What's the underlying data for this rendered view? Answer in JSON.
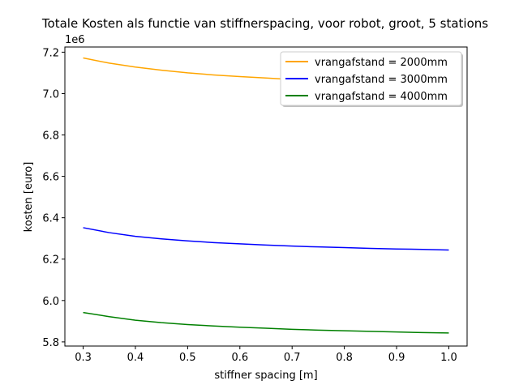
{
  "chart_data": {
    "type": "line",
    "title": "Totale Kosten als functie van stiffnerspacing, voor robot, groot, 5 stations",
    "xlabel": "stiffner spacing [m]",
    "ylabel": "kosten [euro]",
    "y_offset_label": "1e6",
    "xlim": [
      0.265,
      1.035
    ],
    "ylim": [
      5.78,
      7.225
    ],
    "y_scale_factor": 1000000,
    "x_ticks": [
      0.3,
      0.4,
      0.5,
      0.6,
      0.7,
      0.8,
      0.9,
      1.0
    ],
    "x_tick_labels": [
      "0.3",
      "0.4",
      "0.5",
      "0.6",
      "0.7",
      "0.8",
      "0.9",
      "1.0"
    ],
    "y_ticks": [
      5.8,
      6.0,
      6.2,
      6.4,
      6.6,
      6.8,
      7.0,
      7.2
    ],
    "y_tick_labels": [
      "5.8",
      "6.0",
      "6.2",
      "6.4",
      "6.6",
      "6.8",
      "7.0",
      "7.2"
    ],
    "grid": false,
    "legend_position": "top-right",
    "x": [
      0.3,
      0.35,
      0.4,
      0.45,
      0.5,
      0.55,
      0.6,
      0.65,
      0.7,
      0.75,
      0.8,
      0.85,
      0.9,
      0.95,
      1.0
    ],
    "series": [
      {
        "name": "vrangafstand = 2000mm",
        "color": "#ffa500",
        "values": [
          7.172,
          7.147,
          7.128,
          7.113,
          7.1,
          7.09,
          7.082,
          7.075,
          7.068,
          7.062,
          7.057,
          7.053,
          7.049,
          7.046,
          7.043
        ]
      },
      {
        "name": "vrangafstand = 3000mm",
        "color": "#0000ff",
        "values": [
          6.352,
          6.328,
          6.31,
          6.298,
          6.288,
          6.28,
          6.274,
          6.268,
          6.263,
          6.259,
          6.256,
          6.252,
          6.249,
          6.247,
          6.244
        ]
      },
      {
        "name": "vrangafstand = 4000mm",
        "color": "#008000",
        "values": [
          5.942,
          5.922,
          5.905,
          5.893,
          5.884,
          5.877,
          5.871,
          5.866,
          5.861,
          5.857,
          5.854,
          5.851,
          5.848,
          5.845,
          5.843
        ]
      }
    ]
  }
}
